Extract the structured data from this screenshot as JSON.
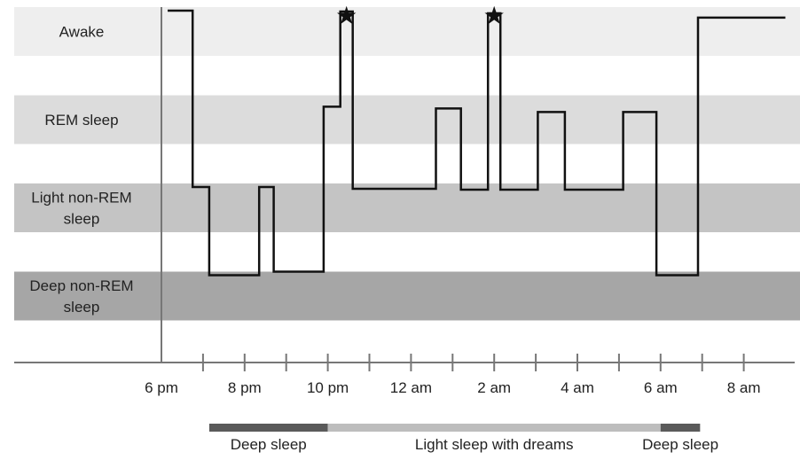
{
  "chart_data": {
    "type": "line",
    "step": true,
    "title": "",
    "xlabel": "",
    "ylabel": "",
    "x_unit": "hours after 6 pm",
    "xlim": [
      0,
      15
    ],
    "stages": [
      {
        "key": "awake",
        "label_lines": [
          "Awake"
        ],
        "color": "#eeeeee"
      },
      {
        "key": "rem",
        "label_lines": [
          "REM sleep"
        ],
        "color": "#dcdcdc"
      },
      {
        "key": "light",
        "label_lines": [
          "Light non-REM",
          "sleep"
        ],
        "color": "#c4c4c4"
      },
      {
        "key": "deep",
        "label_lines": [
          "Deep non-REM",
          "sleep"
        ],
        "color": "#a6a6a6"
      }
    ],
    "ticks": [
      {
        "x": 0,
        "label": "6 pm"
      },
      {
        "x": 1,
        "label": ""
      },
      {
        "x": 2,
        "label": "8 pm"
      },
      {
        "x": 3,
        "label": ""
      },
      {
        "x": 4,
        "label": "10 pm"
      },
      {
        "x": 5,
        "label": ""
      },
      {
        "x": 6,
        "label": "12 am"
      },
      {
        "x": 7,
        "label": ""
      },
      {
        "x": 8,
        "label": "2 am"
      },
      {
        "x": 9,
        "label": ""
      },
      {
        "x": 10,
        "label": "4 am"
      },
      {
        "x": 11,
        "label": ""
      },
      {
        "x": 12,
        "label": "6 am"
      },
      {
        "x": 13,
        "label": ""
      },
      {
        "x": 14,
        "label": "8 am"
      }
    ],
    "series": [
      {
        "color": "#111111",
        "points": [
          {
            "x": 0.15,
            "stage": 0.04
          },
          {
            "x": 0.75,
            "stage": 0.04
          },
          {
            "x": 0.75,
            "stage": 2.04
          },
          {
            "x": 1.15,
            "stage": 2.04
          },
          {
            "x": 1.15,
            "stage": 3.04
          },
          {
            "x": 2.35,
            "stage": 3.04
          },
          {
            "x": 2.35,
            "stage": 2.04
          },
          {
            "x": 2.7,
            "stage": 2.04
          },
          {
            "x": 2.7,
            "stage": 3.0
          },
          {
            "x": 3.9,
            "stage": 3.0
          },
          {
            "x": 3.9,
            "stage": 1.13
          },
          {
            "x": 4.3,
            "stage": 1.13
          },
          {
            "x": 4.3,
            "stage": 0.05
          },
          {
            "x": 4.6,
            "stage": 0.05
          },
          {
            "x": 4.6,
            "stage": 2.06
          },
          {
            "x": 6.6,
            "stage": 2.06
          },
          {
            "x": 6.6,
            "stage": 1.15
          },
          {
            "x": 7.2,
            "stage": 1.15
          },
          {
            "x": 7.2,
            "stage": 2.07
          },
          {
            "x": 7.85,
            "stage": 2.07
          },
          {
            "x": 7.85,
            "stage": 0.07
          },
          {
            "x": 8.15,
            "stage": 0.07
          },
          {
            "x": 8.15,
            "stage": 2.07
          },
          {
            "x": 9.05,
            "stage": 2.07
          },
          {
            "x": 9.05,
            "stage": 1.19
          },
          {
            "x": 9.7,
            "stage": 1.19
          },
          {
            "x": 9.7,
            "stage": 2.07
          },
          {
            "x": 11.1,
            "stage": 2.07
          },
          {
            "x": 11.1,
            "stage": 1.19
          },
          {
            "x": 11.9,
            "stage": 1.19
          },
          {
            "x": 11.9,
            "stage": 3.04
          },
          {
            "x": 12.9,
            "stage": 3.04
          },
          {
            "x": 12.9,
            "stage": 0.12
          },
          {
            "x": 15.0,
            "stage": 0.12
          }
        ]
      }
    ],
    "markers": [
      {
        "x": 4.45,
        "symbol": "★"
      },
      {
        "x": 8.0,
        "symbol": "★"
      }
    ],
    "summary_segments": [
      {
        "start": 1.15,
        "end": 4.0,
        "label": "Deep sleep",
        "color": "#5a5a5a"
      },
      {
        "start": 4.0,
        "end": 12.0,
        "label": "Light sleep with dreams",
        "color": "#bdbdbd"
      },
      {
        "start": 12.0,
        "end": 12.95,
        "label": "Deep sleep",
        "color": "#5a5a5a"
      }
    ]
  }
}
